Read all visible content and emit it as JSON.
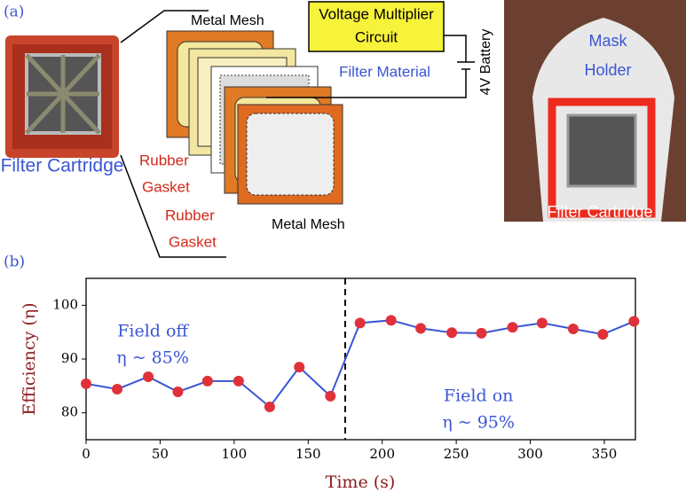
{
  "panel_a": {
    "label": "(a)",
    "left_photo_caption": "Filter Cartridge",
    "metal_mesh_top": "Metal Mesh",
    "voltage_multiplier": [
      "Voltage Multiplier",
      "Circuit"
    ],
    "filter_material": "Filter Material",
    "battery": "4V Battery",
    "rubber_gasket_1": [
      "Rubber",
      "Gasket"
    ],
    "rubber_gasket_2": [
      "Rubber",
      "Gasket"
    ],
    "metal_mesh_bottom": "Metal Mesh",
    "mask_holder": [
      "Mask",
      "Holder"
    ],
    "right_photo_caption": "Filter Cartridge"
  },
  "panel_b_label": "(b)",
  "chart_data": {
    "type": "line",
    "xlabel": "Time (s)",
    "ylabel": "Efficiency (η)",
    "x": [
      0,
      21,
      42,
      62,
      82,
      103,
      124,
      144,
      165,
      185,
      206,
      226,
      247,
      267,
      288,
      308,
      329,
      349,
      370
    ],
    "values": [
      85.4,
      84.4,
      86.7,
      83.9,
      85.9,
      85.9,
      81.1,
      88.5,
      83.1,
      96.7,
      97.2,
      95.7,
      94.9,
      94.8,
      95.9,
      96.7,
      95.6,
      94.6,
      97.0
    ],
    "color": "#3a56d4",
    "marker_color": "#e0313a",
    "xlim": [
      0,
      371
    ],
    "ylim": [
      75,
      105
    ],
    "xticks": [
      0,
      50,
      100,
      150,
      200,
      250,
      300,
      350
    ],
    "yticks": [
      80,
      90,
      100
    ],
    "vline": 175,
    "annotations": [
      {
        "lines": [
          "Field off",
          "η ~ 85%"
        ],
        "x": 45,
        "y": 95
      },
      {
        "lines": [
          "Field on",
          "η ~ 95%"
        ],
        "x": 265,
        "y": 83
      }
    ]
  }
}
